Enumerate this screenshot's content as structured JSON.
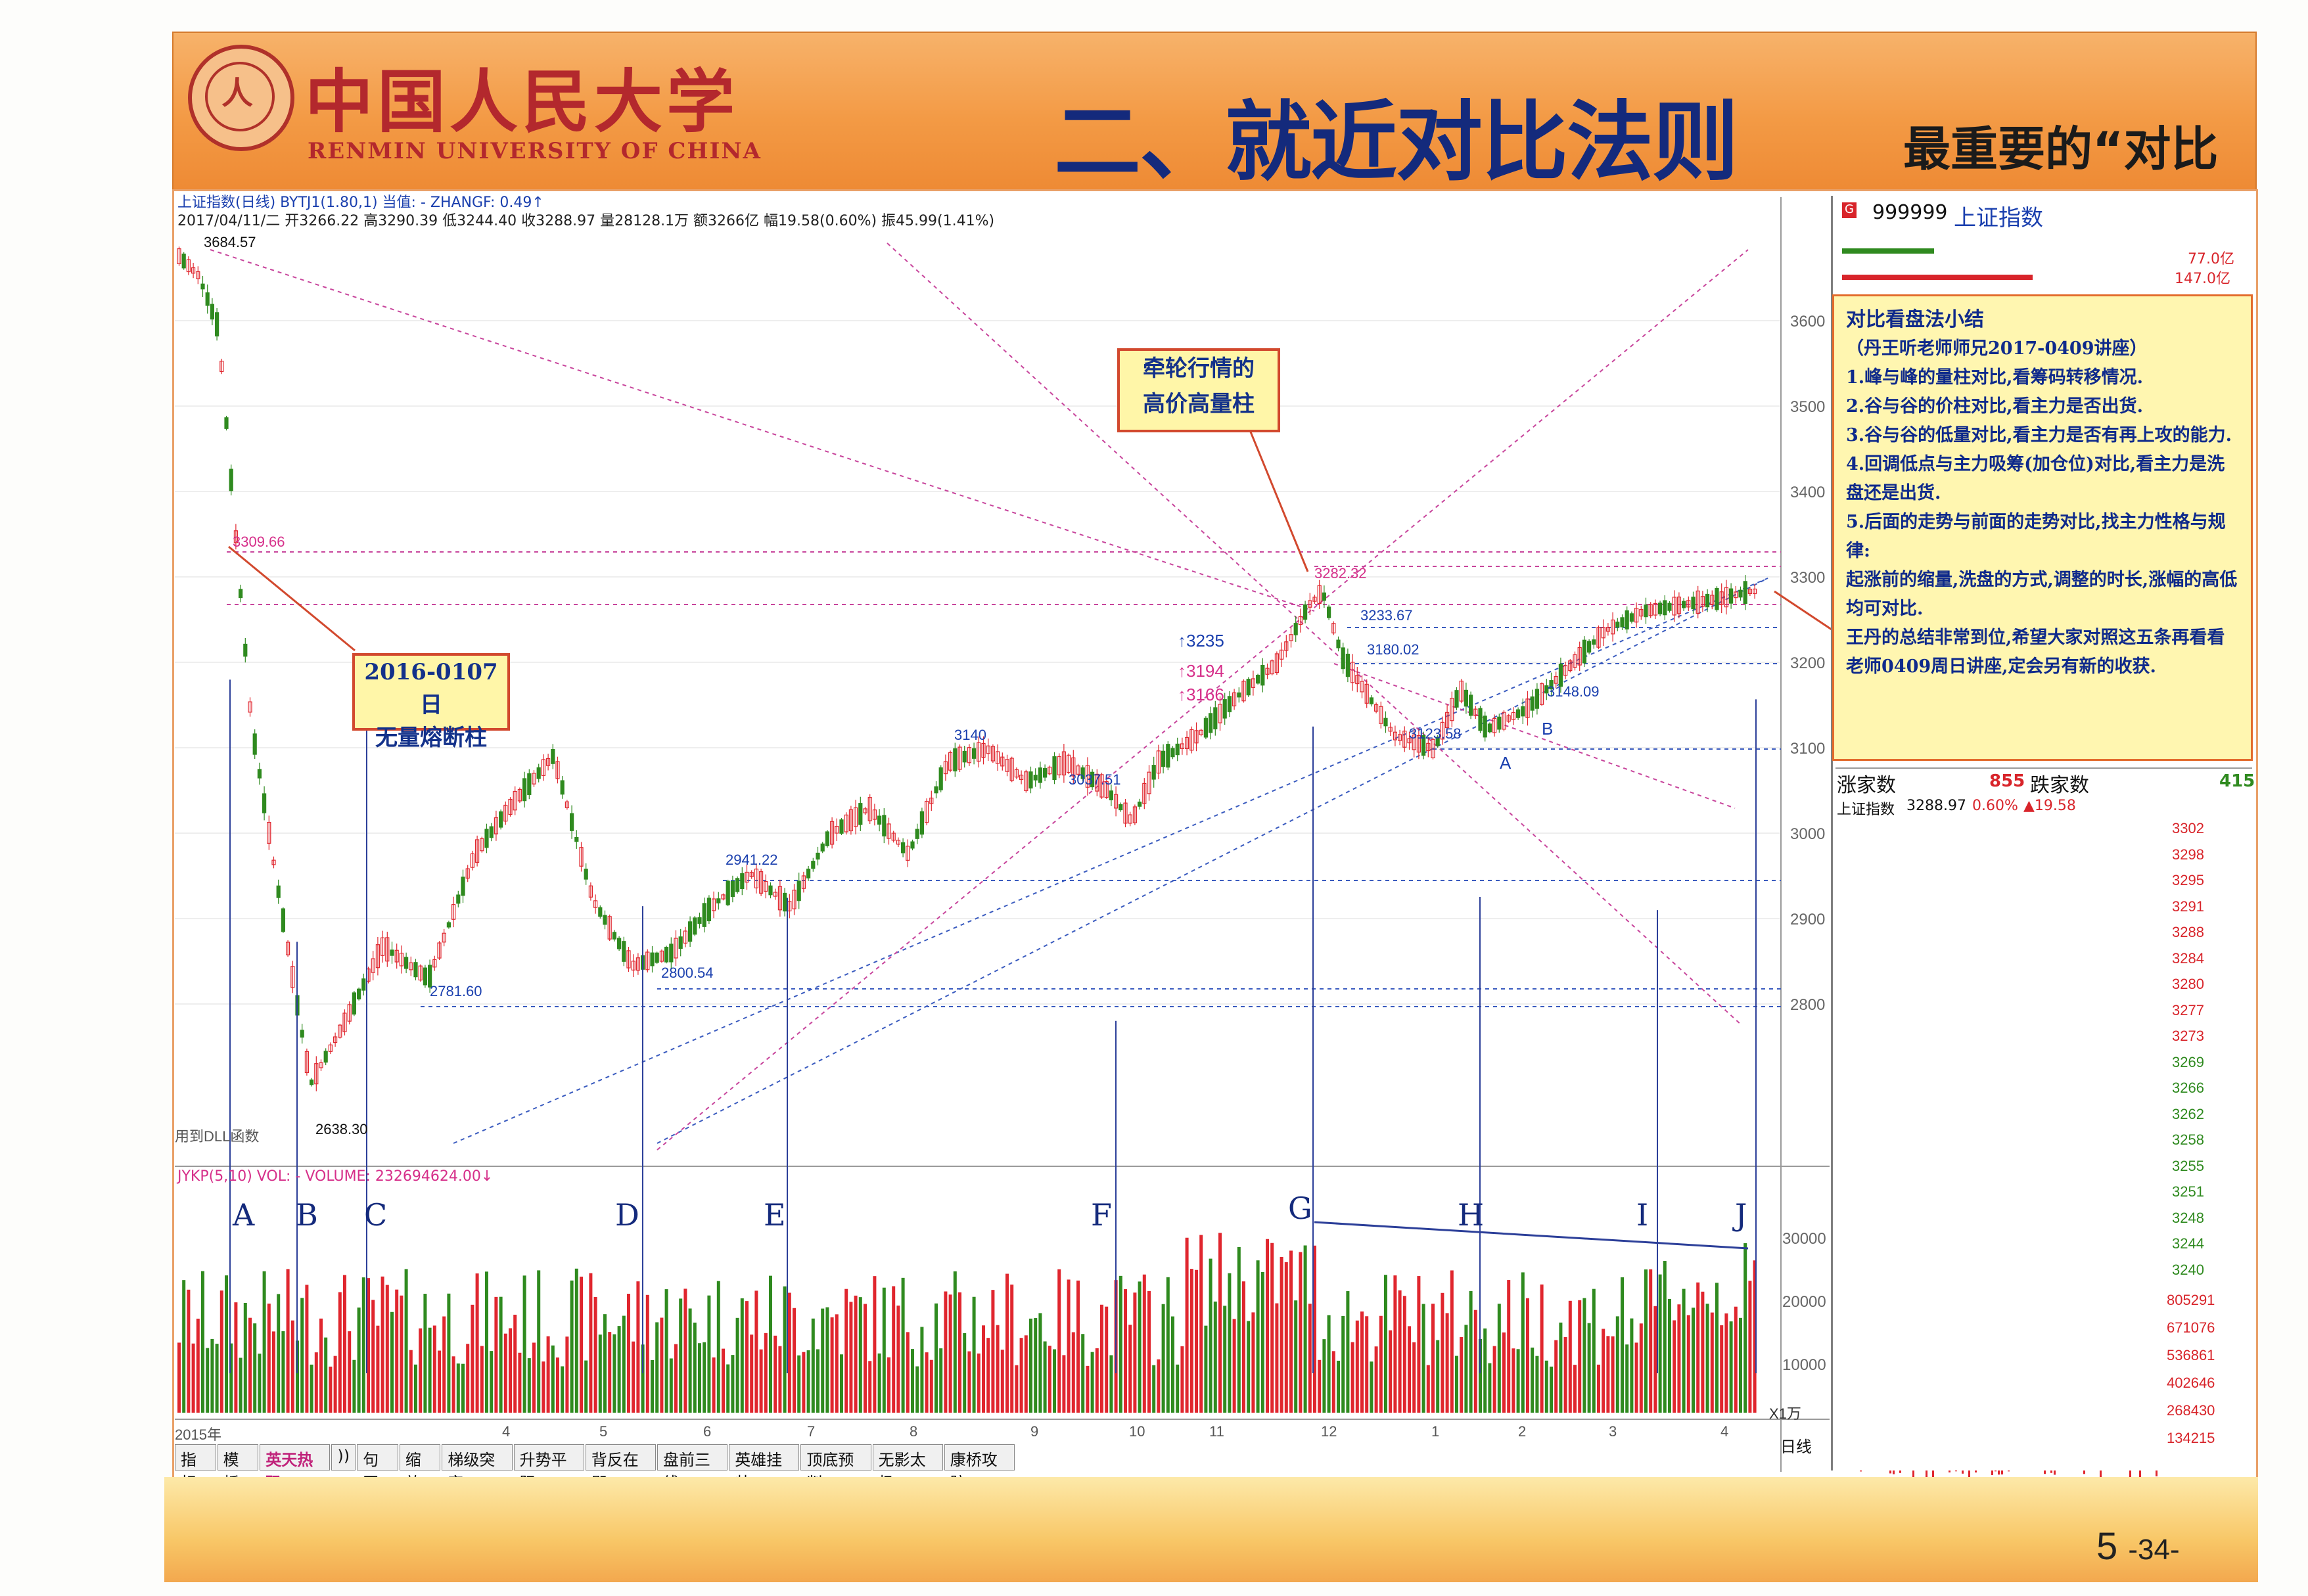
{
  "header": {
    "university_cn": "中国人民大学",
    "university_en": "RENMIN UNIVERSITY OF CHINA",
    "logo_glyph": "人",
    "title": "二、就近对比法则",
    "subtitle": "最重要的“对比术”"
  },
  "chart_header": {
    "line1": "上证指数(日线) BYTJ1(1.80,1)  当值: -   ZHANGF: 0.49↑",
    "line2": "2017/04/11/二 开3266.22 高3290.39 低3244.40 收3288.97 量28128.1万 额3266亿 幅19.58(0.60%) 振45.99(1.41%)"
  },
  "price_labels": {
    "high_start": "3684.57",
    "p1": "3309.66",
    "low": "2638.30",
    "p2": "2781.60",
    "p3": "2941.22",
    "p4": "2800.54",
    "p5": "3037.51",
    "p6": "3140",
    "p7": "↑3235",
    "p8": "↑3194",
    "p9": "↑3166",
    "p10": "3282.32",
    "p11": "3233.67",
    "p12": "3180.02",
    "p13": "3123.58",
    "p14": "3148.09",
    "label_a": "A",
    "label_b": "B",
    "dll": "用到DLL函数"
  },
  "callouts": {
    "left_line1": "2016-0107日",
    "left_line2": "无量熔断柱",
    "mid_line1": "牵轮行情的",
    "mid_line2": "高价高量柱"
  },
  "notes": {
    "title": "对比看盘法小结",
    "source": "（丹王听老师师兄2017-0409讲座）",
    "items": [
      "1.峰与峰的量柱对比,看筹码转移情况.",
      "2.谷与谷的价柱对比,看主力是否出货.",
      "3.谷与谷的低量对比,看主力是否有再上攻的能力.",
      "4.回调低点与主力吸筹(加仓位)对比,看主力是洗盘还是出货.",
      "5.后面的走势与前面的走势对比,找主力性格与规律:",
      "起涨前的缩量,洗盘的方式,调整的时长,涨幅的高低均可对比."
    ],
    "closing": "王丹的总结非常到位,希望大家对照这五条再看看老师0409周日讲座,定会另有新的收获."
  },
  "volume_header": "JYKP(5,10) VOL: -  VOLUME: 232694624.00↓",
  "volume_letters": [
    "A",
    "B",
    "C",
    "D",
    "E",
    "F",
    "G",
    "H",
    "I",
    "J"
  ],
  "y_axis_price": [
    "3600",
    "3500",
    "3400",
    "3300",
    "3200",
    "3100",
    "3000",
    "2900",
    "2800"
  ],
  "y_axis_volume": [
    "30000",
    "20000",
    "10000"
  ],
  "volume_unit": "X1万",
  "x_axis": [
    "2015年",
    "4",
    "5",
    "6",
    "7",
    "8",
    "9",
    "10",
    "11",
    "12",
    "1",
    "2",
    "3",
    "4"
  ],
  "side": {
    "code": "999999",
    "name": "上证指数",
    "vol_a": "77.0亿",
    "vol_b": "147.0亿",
    "rise_label": "涨家数",
    "rise_count": "855",
    "fall_label": "跌家数",
    "fall_count": "415",
    "intraday_label": "上证指数",
    "intraday_value": "3288.97",
    "intraday_pct": "0.60%",
    "intraday_chg": "▲19.58",
    "right_axis": [
      "3302",
      "3298",
      "3295",
      "3291",
      "3288",
      "3284",
      "3280",
      "3277",
      "3273",
      "3269",
      "3266",
      "3262",
      "3258",
      "3255",
      "3251",
      "3248",
      "3244",
      "3240"
    ],
    "vol_axis": [
      "805291",
      "671076",
      "536861",
      "402646",
      "268430",
      "134215"
    ],
    "period": "日线"
  },
  "buttons": [
    "指标",
    "模板",
    "英天热码",
    "))",
    "句网",
    "缩放",
    "梯级突穿",
    "升势平阳",
    "背反在即",
    "盘前三线",
    "英雄挂帅",
    "顶底预判",
    "无影太极",
    "康桥攻防"
  ],
  "page_number": "5",
  "page_suffix": "-34-",
  "colors": {
    "header_orange": "#f39a45",
    "title_blue": "#142a7c",
    "up_red": "#e0262e",
    "down_green": "#2f8a1f",
    "callout_fill": "#fff6a8"
  }
}
